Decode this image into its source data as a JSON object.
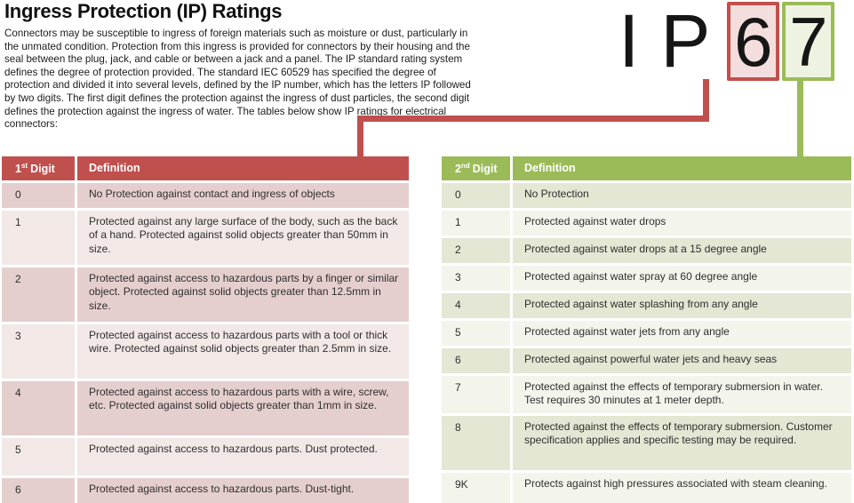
{
  "title": "Ingress Protection (IP) Ratings",
  "intro": "Connectors may be susceptible to ingress of foreign materials such as moisture or dust, particularly in the unmated condition. Protection from this ingress is provided for connectors by their housing and the seal between the plug, jack, and cable or between a jack and a panel. The IP standard rating system defines the degree of protection provided. The standard IEC 60529 has specified the degree of protection and divided it into several levels, defined by the IP number, which has the letters IP followed by two digits. The first digit defines the protection against the ingress of dust particles, the second digit defines the protection against the ingress of water. The tables below show IP ratings for electrical connectors:",
  "ip_graphic": {
    "letter_i": "I",
    "letter_p": "P",
    "first_digit": "6",
    "second_digit": "7"
  },
  "colors": {
    "accent_red": "#c0504d",
    "accent_green": "#9bbb59",
    "row_pink_dark": "#e5cfce",
    "row_pink_light": "#f2e9e7",
    "row_green_dark": "#e3e7d3",
    "row_green_light": "#f3f5ec",
    "box_pink_fill": "#f4dedd",
    "box_green_fill": "#eef3e1"
  },
  "first_digit_table": {
    "header": {
      "digit_base": "1",
      "digit_sup": "st",
      "digit_word": "Digit",
      "definition": "Definition"
    },
    "rows": [
      {
        "digit": "0",
        "definition": "No Protection against contact and ingress of objects"
      },
      {
        "digit": "1",
        "definition": "Protected against any large surface of the body, such as the back of a hand. Protected against solid objects greater than 50mm in size."
      },
      {
        "digit": "2",
        "definition": "Protected against access to hazardous parts by a finger or similar object. Protected against solid objects greater than 12.5mm in size."
      },
      {
        "digit": "3",
        "definition": "Protected against access to hazardous parts with a tool or thick wire. Protected against solid objects greater than 2.5mm in size."
      },
      {
        "digit": "4",
        "definition": "Protected against access to hazardous parts with a wire, screw, etc. Protected against solid objects greater than 1mm in size."
      },
      {
        "digit": "5",
        "definition": "Protected against access to hazardous parts. Dust protected."
      },
      {
        "digit": "6",
        "definition": "Protected against access to hazardous parts. Dust-tight."
      }
    ]
  },
  "second_digit_table": {
    "header": {
      "digit_base": "2",
      "digit_sup": "nd",
      "digit_word": "Digit",
      "definition": "Definition"
    },
    "rows": [
      {
        "digit": "0",
        "definition": "No Protection"
      },
      {
        "digit": "1",
        "definition": "Protected against water drops"
      },
      {
        "digit": "2",
        "definition": "Protected against water drops at a 15 degree angle"
      },
      {
        "digit": "3",
        "definition": "Protected against water spray at 60 degree angle"
      },
      {
        "digit": "4",
        "definition": "Protected against water splashing from any angle"
      },
      {
        "digit": "5",
        "definition": "Protected against water jets from any angle"
      },
      {
        "digit": "6",
        "definition": "Protected against powerful water jets and heavy seas"
      },
      {
        "digit": "7",
        "definition": "Protected against the effects of temporary submersion in water. Test requires 30 minutes at 1 meter depth."
      },
      {
        "digit": "8",
        "definition": "Protected against the effects of temporary submersion. Customer specification applies and specific testing may be required."
      },
      {
        "digit": "9K",
        "definition": "Protects against high pressures associated with steam cleaning."
      }
    ]
  }
}
